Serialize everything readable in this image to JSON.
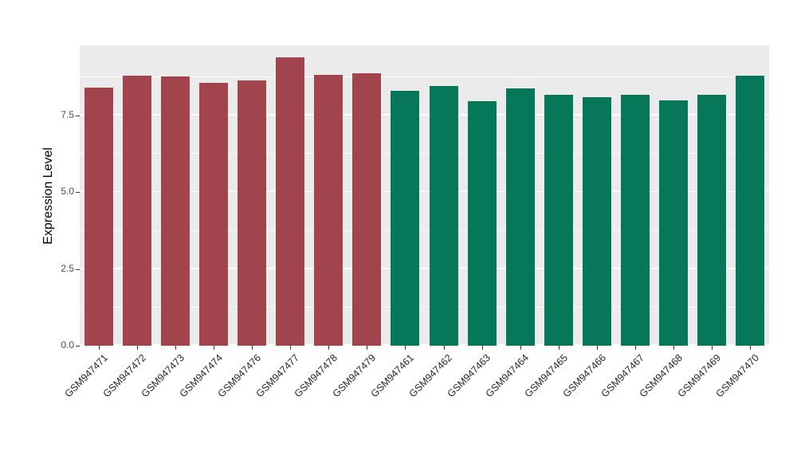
{
  "figure": {
    "background": "#FFFFFF",
    "panel_background": "#EBEBEB",
    "grid_color": "#FFFFFF"
  },
  "chart_data": {
    "type": "bar",
    "title": "",
    "xlabel": "",
    "ylabel": "Expression Level",
    "ylim": [
      0,
      9.78
    ],
    "grid": true,
    "legend_position": "none",
    "yticks": [
      "0.0",
      "2.5",
      "5.0",
      "7.5"
    ],
    "ytick_values": [
      0,
      2.5,
      5,
      7.5
    ],
    "minor_tick_values": [
      1.25,
      3.75,
      6.25,
      8.75
    ],
    "categories": [
      "GSM947471",
      "GSM947472",
      "GSM947473",
      "GSM947474",
      "GSM947476",
      "GSM947477",
      "GSM947478",
      "GSM947479",
      "GSM947461",
      "GSM947462",
      "GSM947463",
      "GSM947464",
      "GSM947465",
      "GSM947466",
      "GSM947467",
      "GSM947468",
      "GSM947469",
      "GSM947470"
    ],
    "values": [
      8.4,
      8.8,
      8.78,
      8.55,
      8.65,
      9.4,
      8.83,
      8.88,
      8.3,
      8.45,
      7.97,
      8.38,
      8.18,
      8.1,
      8.18,
      8.0,
      8.17,
      8.8
    ],
    "bar_colors": [
      "#A2444E",
      "#A2444E",
      "#A2444E",
      "#A2444E",
      "#A2444E",
      "#A2444E",
      "#A2444E",
      "#A2444E",
      "#067859",
      "#067859",
      "#067859",
      "#067859",
      "#067859",
      "#067859",
      "#067859",
      "#067859",
      "#067859",
      "#067859"
    ],
    "groups": [
      {
        "name": "left-group",
        "color": "#A2444E",
        "count": 8
      },
      {
        "name": "right-group",
        "color": "#067859",
        "count": 10
      }
    ]
  }
}
